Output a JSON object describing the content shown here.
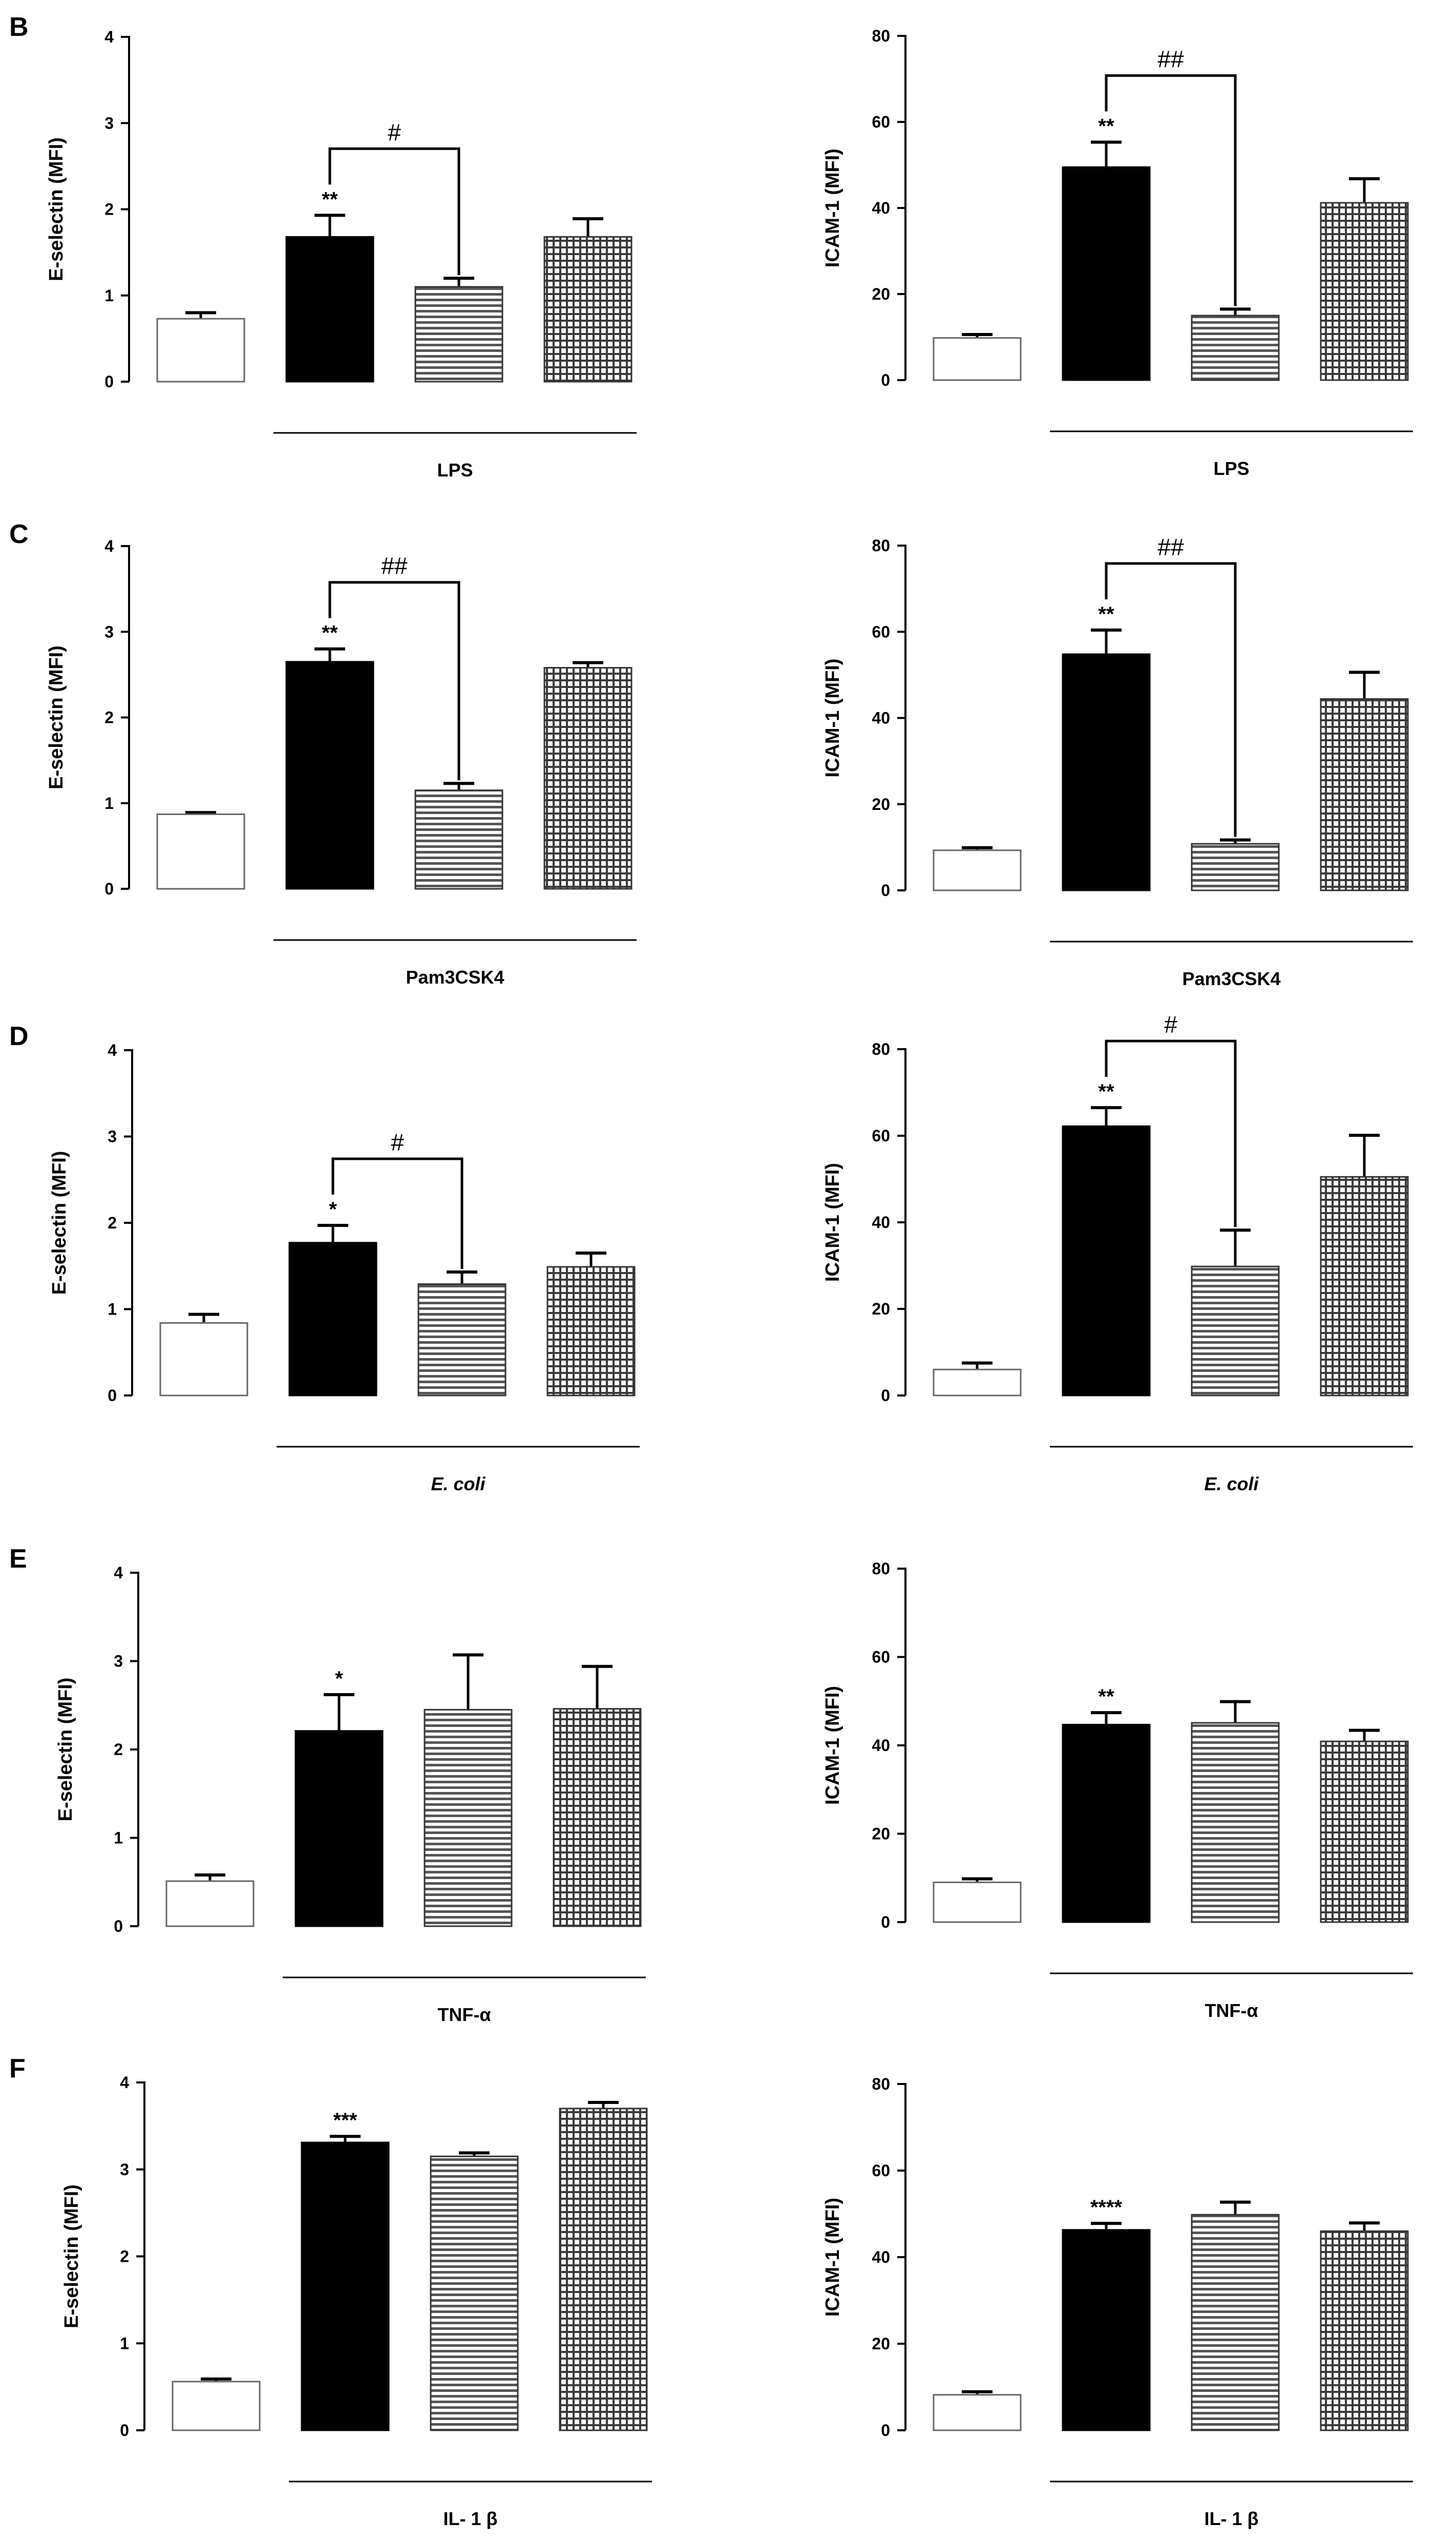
{
  "figure": {
    "bar_patterns": [
      "open",
      "solid",
      "horizontal-lines",
      "grid"
    ]
  },
  "chart_data": [
    {
      "panel": "B",
      "type": "bar",
      "ylabel": "E-selectin  (MFI)",
      "ylim": [
        0,
        4
      ],
      "yticks": [
        0,
        1,
        2,
        3,
        4
      ],
      "values": [
        0.73,
        1.68,
        1.1,
        1.68
      ],
      "errors": [
        0.07,
        0.25,
        0.1,
        0.21
      ],
      "significance": [
        "",
        "**",
        "",
        ""
      ],
      "bracket": {
        "from": 1,
        "to": 2,
        "label": "#"
      },
      "group_label": "LPS",
      "group_italic": false
    },
    {
      "panel": "",
      "type": "bar",
      "ylabel": "ICAM-1  (MFI)",
      "ylim": [
        0,
        80
      ],
      "yticks": [
        0,
        20,
        40,
        60,
        80
      ],
      "values": [
        9.8,
        49.5,
        15,
        41.2
      ],
      "errors": [
        0.8,
        5.8,
        1.5,
        5.6
      ],
      "significance": [
        "",
        "**",
        "",
        ""
      ],
      "bracket": {
        "from": 1,
        "to": 2,
        "label": "##"
      },
      "group_label": "LPS",
      "group_italic": false
    },
    {
      "panel": "C",
      "type": "bar",
      "ylabel": "E-selectin  (MFI)",
      "ylim": [
        0,
        4
      ],
      "yticks": [
        0,
        1,
        2,
        3,
        4
      ],
      "values": [
        0.87,
        2.65,
        1.15,
        2.58
      ],
      "errors": [
        0.02,
        0.15,
        0.08,
        0.06
      ],
      "significance": [
        "",
        "**",
        "",
        ""
      ],
      "bracket": {
        "from": 1,
        "to": 2,
        "label": "##"
      },
      "group_label": "Pam3CSK4",
      "group_italic": false
    },
    {
      "panel": "",
      "type": "bar",
      "ylabel": "ICAM-1  (MFI)",
      "ylim": [
        0,
        80
      ],
      "yticks": [
        0,
        20,
        40,
        60,
        80
      ],
      "values": [
        9.3,
        54.8,
        10.8,
        44.4
      ],
      "errors": [
        0.6,
        5.6,
        0.9,
        6.2
      ],
      "significance": [
        "",
        "**",
        "",
        ""
      ],
      "bracket": {
        "from": 1,
        "to": 2,
        "label": "##"
      },
      "group_label": "Pam3CSK4",
      "group_italic": false
    },
    {
      "panel": "D",
      "type": "bar",
      "ylabel": "E-selectin  (MFI)",
      "ylim": [
        0,
        4
      ],
      "yticks": [
        0,
        1,
        2,
        3,
        4
      ],
      "values": [
        0.84,
        1.77,
        1.29,
        1.49
      ],
      "errors": [
        0.1,
        0.2,
        0.14,
        0.16
      ],
      "significance": [
        "",
        "*",
        "",
        ""
      ],
      "bracket": {
        "from": 1,
        "to": 2,
        "label": "#"
      },
      "group_label": "E. coli",
      "group_italic": true
    },
    {
      "panel": "",
      "type": "bar",
      "ylabel": "ICAM-1  (MFI)",
      "ylim": [
        0,
        80
      ],
      "yticks": [
        0,
        20,
        40,
        60,
        80
      ],
      "values": [
        6,
        62.2,
        29.8,
        50.5
      ],
      "errors": [
        1.5,
        4.3,
        8.4,
        9.6
      ],
      "significance": [
        "",
        "**",
        "",
        ""
      ],
      "bracket": {
        "from": 1,
        "to": 2,
        "label": "#"
      },
      "group_label": "E. coli",
      "group_italic": true
    },
    {
      "panel": "E",
      "type": "bar",
      "ylabel": "E-selectin  (MFI)",
      "ylim": [
        0,
        4
      ],
      "yticks": [
        0,
        1,
        2,
        3,
        4
      ],
      "values": [
        0.51,
        2.21,
        2.45,
        2.46
      ],
      "errors": [
        0.07,
        0.41,
        0.62,
        0.48
      ],
      "significance": [
        "",
        "*",
        "",
        ""
      ],
      "bracket": null,
      "group_label": "TNF-α",
      "group_italic": false
    },
    {
      "panel": "",
      "type": "bar",
      "ylabel": "ICAM-1  (MFI)",
      "ylim": [
        0,
        80
      ],
      "yticks": [
        0,
        20,
        40,
        60,
        80
      ],
      "values": [
        9,
        44.7,
        45.1,
        40.9
      ],
      "errors": [
        0.8,
        2.7,
        4.8,
        2.5
      ],
      "significance": [
        "",
        "**",
        "",
        ""
      ],
      "bracket": null,
      "group_label": "TNF-α",
      "group_italic": false
    },
    {
      "panel": "F",
      "type": "bar",
      "ylabel": "E-selectin  (MFI)",
      "ylim": [
        0,
        4
      ],
      "yticks": [
        0,
        1,
        2,
        3,
        4
      ],
      "values": [
        0.56,
        3.31,
        3.15,
        3.7
      ],
      "errors": [
        0.03,
        0.07,
        0.04,
        0.07
      ],
      "significance": [
        "",
        "***",
        "",
        ""
      ],
      "bracket": null,
      "group_label": "IL- 1 β",
      "group_italic": false
    },
    {
      "panel": "",
      "type": "bar",
      "ylabel": "ICAM-1  (MFI)",
      "ylim": [
        0,
        80
      ],
      "yticks": [
        0,
        20,
        40,
        60,
        80
      ],
      "values": [
        8.2,
        46.3,
        49.8,
        46
      ],
      "errors": [
        0.7,
        1.5,
        2.9,
        1.9
      ],
      "significance": [
        "",
        "****",
        "",
        ""
      ],
      "bracket": null,
      "group_label": "IL- 1 β",
      "group_italic": false
    }
  ]
}
